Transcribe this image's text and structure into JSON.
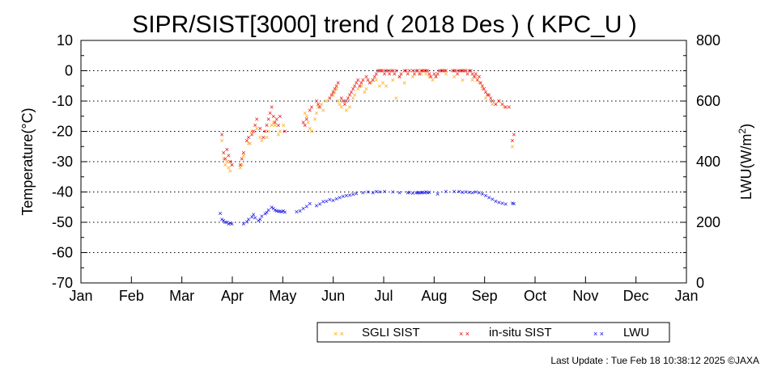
{
  "chart_data": {
    "type": "scatter",
    "title": "SIPR/SIST[3000] trend ( 2018 Des ) ( KPC_U )",
    "ylabel_left": "Temperature(°C)",
    "ylabel_right_main": "LWU(W/m",
    "ylabel_right_sup": "2",
    "ylabel_right_end": ")",
    "ylim_left": [
      -70,
      10
    ],
    "ylim_right": [
      0,
      800
    ],
    "yticks_left": [
      10,
      0,
      -10,
      -20,
      -30,
      -40,
      -50,
      -60,
      -70
    ],
    "yticks_right": [
      800,
      600,
      400,
      200,
      0
    ],
    "x_months": [
      "Jan",
      "Feb",
      "Mar",
      "Apr",
      "May",
      "Jun",
      "Jul",
      "Aug",
      "Sep",
      "Oct",
      "Nov",
      "Dec",
      "Jan"
    ],
    "x_unit": "day of year",
    "grid": "horizontal dotted at 10°C steps",
    "legend_placement": "bottom-center",
    "series": [
      {
        "name": "SGLI SIST",
        "color": "#ffa500",
        "axis": "left",
        "x": [
          85,
          86,
          87,
          88,
          89,
          90,
          91,
          96,
          97,
          98,
          101,
          102,
          103,
          106,
          108,
          109,
          112,
          113,
          115,
          116,
          117,
          119,
          120,
          122,
          135,
          136,
          137,
          138,
          139,
          141,
          142,
          143,
          145,
          146,
          148,
          150,
          152,
          153,
          154,
          155,
          156,
          157,
          160,
          162,
          164,
          165,
          167,
          169,
          171,
          172,
          175,
          176,
          178,
          180,
          182,
          184,
          188,
          190,
          192,
          195,
          200,
          205,
          208,
          210,
          212,
          214,
          220,
          225,
          230,
          236,
          238,
          240,
          242,
          244,
          248,
          250,
          252,
          255,
          260
        ],
        "y": [
          -23,
          -29,
          -31,
          -30,
          -32,
          -33,
          -31,
          -32,
          -31,
          -28,
          -24,
          -24,
          -20,
          -19,
          -22,
          -23,
          -22,
          -20,
          -18,
          -17,
          -18,
          -21,
          -20,
          -18,
          -14,
          -15,
          -17,
          -19,
          -20,
          -16,
          -14,
          -12,
          -11,
          -13,
          -10,
          -9,
          -8,
          -7,
          -6,
          -10,
          -11,
          -12,
          -13,
          -12,
          -9,
          -8,
          -6,
          -5,
          -7,
          -6,
          -4,
          -3,
          -3,
          -5,
          -4,
          -5,
          -3,
          -9,
          -2,
          -4,
          -2,
          -1,
          -1,
          -2,
          -3,
          -2,
          -1,
          -2,
          -3,
          -3,
          -2,
          -4,
          -6,
          -9,
          -11,
          -11,
          -10,
          -12,
          -25
        ]
      },
      {
        "name": "in-situ SIST",
        "color": "#e60000",
        "axis": "left",
        "x": [
          85,
          86,
          87,
          88,
          89,
          90,
          91,
          96,
          97,
          98,
          100,
          101,
          103,
          104,
          105,
          106,
          108,
          110,
          111,
          112,
          113,
          114,
          115,
          116,
          117,
          118,
          119,
          120,
          123,
          134,
          135,
          136,
          138,
          139,
          142,
          143,
          144,
          150,
          151,
          152,
          153,
          154,
          155,
          157,
          158,
          159,
          160,
          161,
          162,
          163,
          164,
          165,
          166,
          167,
          168,
          169,
          170,
          172,
          173,
          174,
          176,
          177,
          178,
          179,
          180,
          181,
          182,
          183,
          184,
          185,
          186,
          187,
          188,
          189,
          190,
          192,
          193,
          195,
          196,
          197,
          198,
          200,
          201,
          202,
          203,
          204,
          205,
          206,
          207,
          208,
          209,
          210,
          211,
          213,
          214,
          215,
          216,
          217,
          218,
          219,
          220,
          224,
          225,
          226,
          227,
          228,
          229,
          230,
          231,
          232,
          233,
          234,
          235,
          236,
          237,
          238,
          239,
          240,
          241,
          242,
          243,
          244,
          245,
          246,
          247,
          248,
          250,
          252,
          254,
          256,
          258,
          260,
          261
        ],
        "y": [
          -21,
          -27,
          -29,
          -26,
          -28,
          -30,
          -31,
          -31,
          -29,
          -27,
          -23,
          -22,
          -21,
          -20,
          -18,
          -16,
          -19,
          -22,
          -20,
          -18,
          -16,
          -14,
          -12,
          -15,
          -17,
          -16,
          -18,
          -15,
          -20,
          -17,
          -18,
          -16,
          -13,
          -12,
          -10,
          -11,
          -12,
          -9,
          -8,
          -7,
          -6,
          -5,
          -4,
          -9,
          -10,
          -11,
          -10,
          -9,
          -8,
          -7,
          -6,
          -5,
          -4,
          -3,
          -5,
          -4,
          -3,
          -2,
          -3,
          -4,
          -3,
          -2,
          -1,
          0,
          0,
          0,
          0,
          -1,
          0,
          0,
          -1,
          0,
          0,
          -1,
          0,
          -2,
          -1,
          0,
          0,
          -1,
          0,
          0,
          -1,
          0,
          0,
          -1,
          0,
          0,
          0,
          0,
          0,
          -1,
          -2,
          -1,
          -2,
          -1,
          0,
          0,
          0,
          0,
          0,
          0,
          0,
          0,
          -1,
          0,
          0,
          0,
          0,
          0,
          -1,
          0,
          0,
          -1,
          -2,
          -1,
          -3,
          -2,
          -4,
          -5,
          -6,
          -7,
          -8,
          -8,
          -9,
          -10,
          -11,
          -10,
          -11,
          -12,
          -12,
          -23,
          -21
        ]
      },
      {
        "name": "LWU",
        "color": "#0000e6",
        "axis": "right",
        "x": [
          84,
          85,
          86,
          87,
          88,
          89,
          90,
          91,
          98,
          100,
          101,
          103,
          104,
          105,
          107,
          108,
          109,
          111,
          112,
          113,
          115,
          116,
          117,
          118,
          119,
          120,
          121,
          122,
          123,
          130,
          132,
          134,
          136,
          138,
          142,
          144,
          146,
          148,
          150,
          152,
          154,
          156,
          158,
          160,
          162,
          164,
          166,
          170,
          173,
          176,
          178,
          180,
          183,
          188,
          192,
          197,
          198,
          200,
          202,
          203,
          204,
          205,
          206,
          207,
          208,
          209,
          210,
          215,
          220,
          225,
          228,
          230,
          232,
          234,
          236,
          238,
          240,
          242,
          244,
          246,
          248,
          250,
          252,
          254,
          256,
          260,
          261
        ],
        "y": [
          230,
          210,
          205,
          200,
          200,
          195,
          198,
          195,
          195,
          202,
          210,
          218,
          225,
          215,
          205,
          210,
          220,
          228,
          232,
          240,
          250,
          245,
          240,
          238,
          236,
          236,
          235,
          238,
          234,
          235,
          238,
          245,
          252,
          262,
          255,
          260,
          268,
          270,
          275,
          272,
          278,
          282,
          285,
          288,
          290,
          292,
          295,
          298,
          300,
          298,
          301,
          300,
          302,
          300,
          297,
          297,
          299,
          296,
          298,
          297,
          298,
          297,
          299,
          298,
          300,
          298,
          299,
          294,
          302,
          302,
          301,
          299,
          300,
          299,
          298,
          300,
          297,
          293,
          288,
          282,
          276,
          270,
          266,
          263,
          260,
          263,
          262
        ]
      }
    ]
  },
  "legend": {
    "items": [
      {
        "label": "SGLI SIST",
        "color": "#ffa500"
      },
      {
        "label": "in-situ SIST",
        "color": "#e60000"
      },
      {
        "label": "LWU",
        "color": "#0000e6"
      }
    ]
  },
  "footer": "Last Update : Tue Feb 18 10:38:12 2025  ©JAXA"
}
